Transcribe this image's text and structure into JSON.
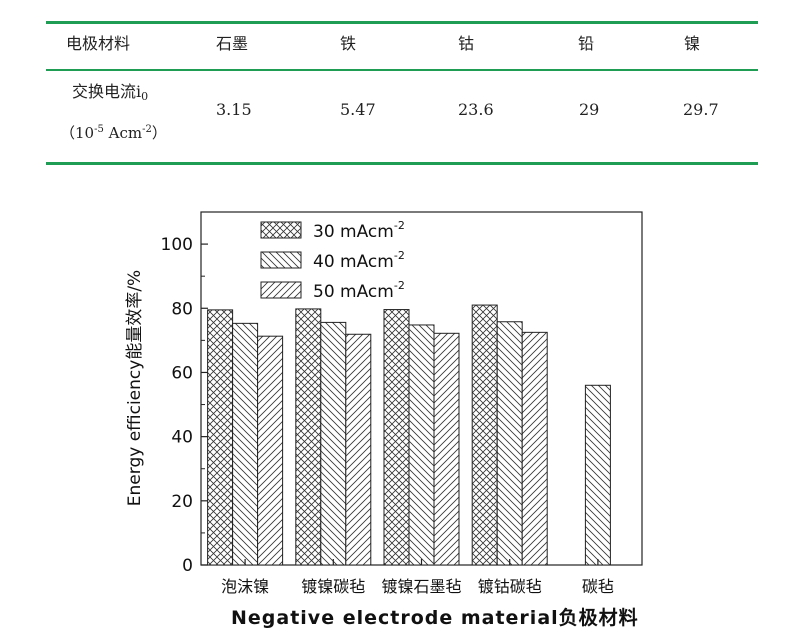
{
  "table": {
    "row_header": "电极材料",
    "columns": [
      "石墨",
      "铁",
      "钴",
      "铅",
      "镍"
    ],
    "row2_label_main": "交换电流i",
    "row2_label_sub": "0",
    "row2_unit_open": "（10",
    "row2_unit_exp": "-5",
    "row2_unit_mid": " Acm",
    "row2_unit_exp2": "-2",
    "row2_unit_close": "）",
    "values": [
      "3.15",
      "5.47",
      "23.6",
      "29",
      "29.7"
    ]
  },
  "chart_data": {
    "type": "bar",
    "categories": [
      "泡沫镍",
      "镀镍碳毡",
      "镀镍石墨毡",
      "镀钴碳毡",
      "碳毡"
    ],
    "series": [
      {
        "name": "30 mAcm-2",
        "values": [
          79.5,
          79.8,
          79.6,
          81.0,
          null
        ]
      },
      {
        "name": "40 mAcm-2",
        "values": [
          75.3,
          75.6,
          74.8,
          75.8,
          56.0
        ]
      },
      {
        "name": "50 mAcm-2",
        "values": [
          71.3,
          71.9,
          72.2,
          72.5,
          null
        ]
      }
    ],
    "legend_labels": [
      {
        "base": "30 mAcm",
        "exp": "-2"
      },
      {
        "base": "40 mAcm",
        "exp": "-2"
      },
      {
        "base": "50 mAcm",
        "exp": "-2"
      }
    ],
    "xlabel": "Negative  electrode  material负极材料",
    "ylabel": "Energy efficiency能量效率/%",
    "ylim": [
      0,
      110
    ],
    "yticks": [
      0,
      20,
      40,
      60,
      80,
      100
    ],
    "legend_position": "top-left",
    "grid": false
  }
}
